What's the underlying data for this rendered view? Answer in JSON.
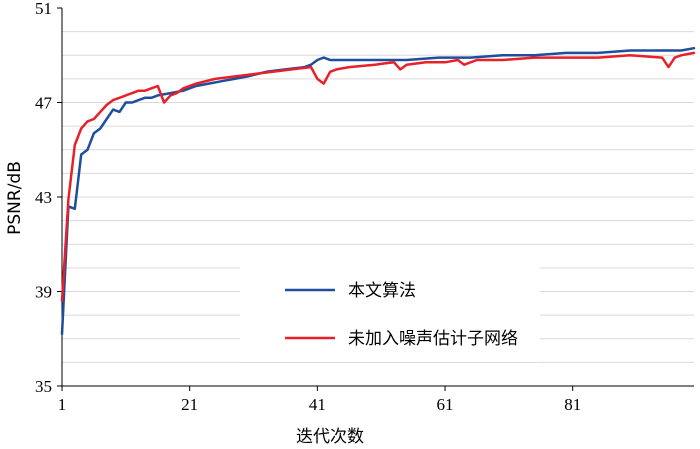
{
  "chart_data": {
    "type": "line",
    "title": "",
    "xlabel": "迭代次数",
    "ylabel": "PSNR/dB",
    "xlim": [
      1,
      100
    ],
    "ylim": [
      35,
      51
    ],
    "x_ticks": [
      "1",
      "21",
      "41",
      "61",
      "81"
    ],
    "y_ticks": [
      "35",
      "39",
      "43",
      "47",
      "51"
    ],
    "x_tick_values": [
      1,
      21,
      41,
      61,
      81
    ],
    "y_tick_values": [
      35,
      39,
      43,
      47,
      51
    ],
    "grid": "horizontal",
    "legend_position": "lower-right",
    "series": [
      {
        "name": "本文算法",
        "color": "#1f4e9c",
        "x": [
          1,
          2,
          3,
          4,
          5,
          6,
          7,
          8,
          9,
          10,
          11,
          12,
          13,
          14,
          15,
          16,
          18,
          20,
          22,
          24,
          26,
          28,
          30,
          33,
          36,
          39,
          40,
          41,
          42,
          43,
          46,
          50,
          55,
          60,
          65,
          70,
          75,
          80,
          85,
          90,
          95,
          98,
          100
        ],
        "y": [
          37.2,
          42.6,
          42.5,
          44.8,
          45.0,
          45.7,
          45.9,
          46.3,
          46.7,
          46.6,
          47.0,
          47.0,
          47.1,
          47.2,
          47.2,
          47.3,
          47.4,
          47.5,
          47.7,
          47.8,
          47.9,
          48.0,
          48.1,
          48.3,
          48.4,
          48.5,
          48.6,
          48.8,
          48.9,
          48.8,
          48.8,
          48.8,
          48.8,
          48.9,
          48.9,
          49.0,
          49.0,
          49.1,
          49.1,
          49.2,
          49.2,
          49.2,
          49.3
        ]
      },
      {
        "name": "未加入噪声估计子网络",
        "color": "#e8202a",
        "x": [
          1,
          2,
          3,
          4,
          5,
          6,
          7,
          8,
          9,
          10,
          11,
          12,
          13,
          14,
          15,
          16,
          17,
          18,
          19,
          20,
          22,
          25,
          28,
          31,
          34,
          37,
          40,
          41,
          42,
          43,
          44,
          46,
          50,
          53,
          54,
          55,
          58,
          61,
          63,
          64,
          66,
          70,
          75,
          80,
          85,
          90,
          95,
          96,
          97,
          98,
          100
        ],
        "y": [
          38.6,
          42.9,
          45.2,
          45.9,
          46.2,
          46.3,
          46.6,
          46.9,
          47.1,
          47.2,
          47.3,
          47.4,
          47.5,
          47.5,
          47.6,
          47.7,
          47.0,
          47.3,
          47.4,
          47.6,
          47.8,
          48.0,
          48.1,
          48.2,
          48.3,
          48.4,
          48.5,
          48.0,
          47.8,
          48.3,
          48.4,
          48.5,
          48.6,
          48.7,
          48.4,
          48.6,
          48.7,
          48.7,
          48.8,
          48.6,
          48.8,
          48.8,
          48.9,
          48.9,
          48.9,
          49.0,
          48.9,
          48.5,
          48.9,
          49.0,
          49.1
        ]
      }
    ]
  }
}
